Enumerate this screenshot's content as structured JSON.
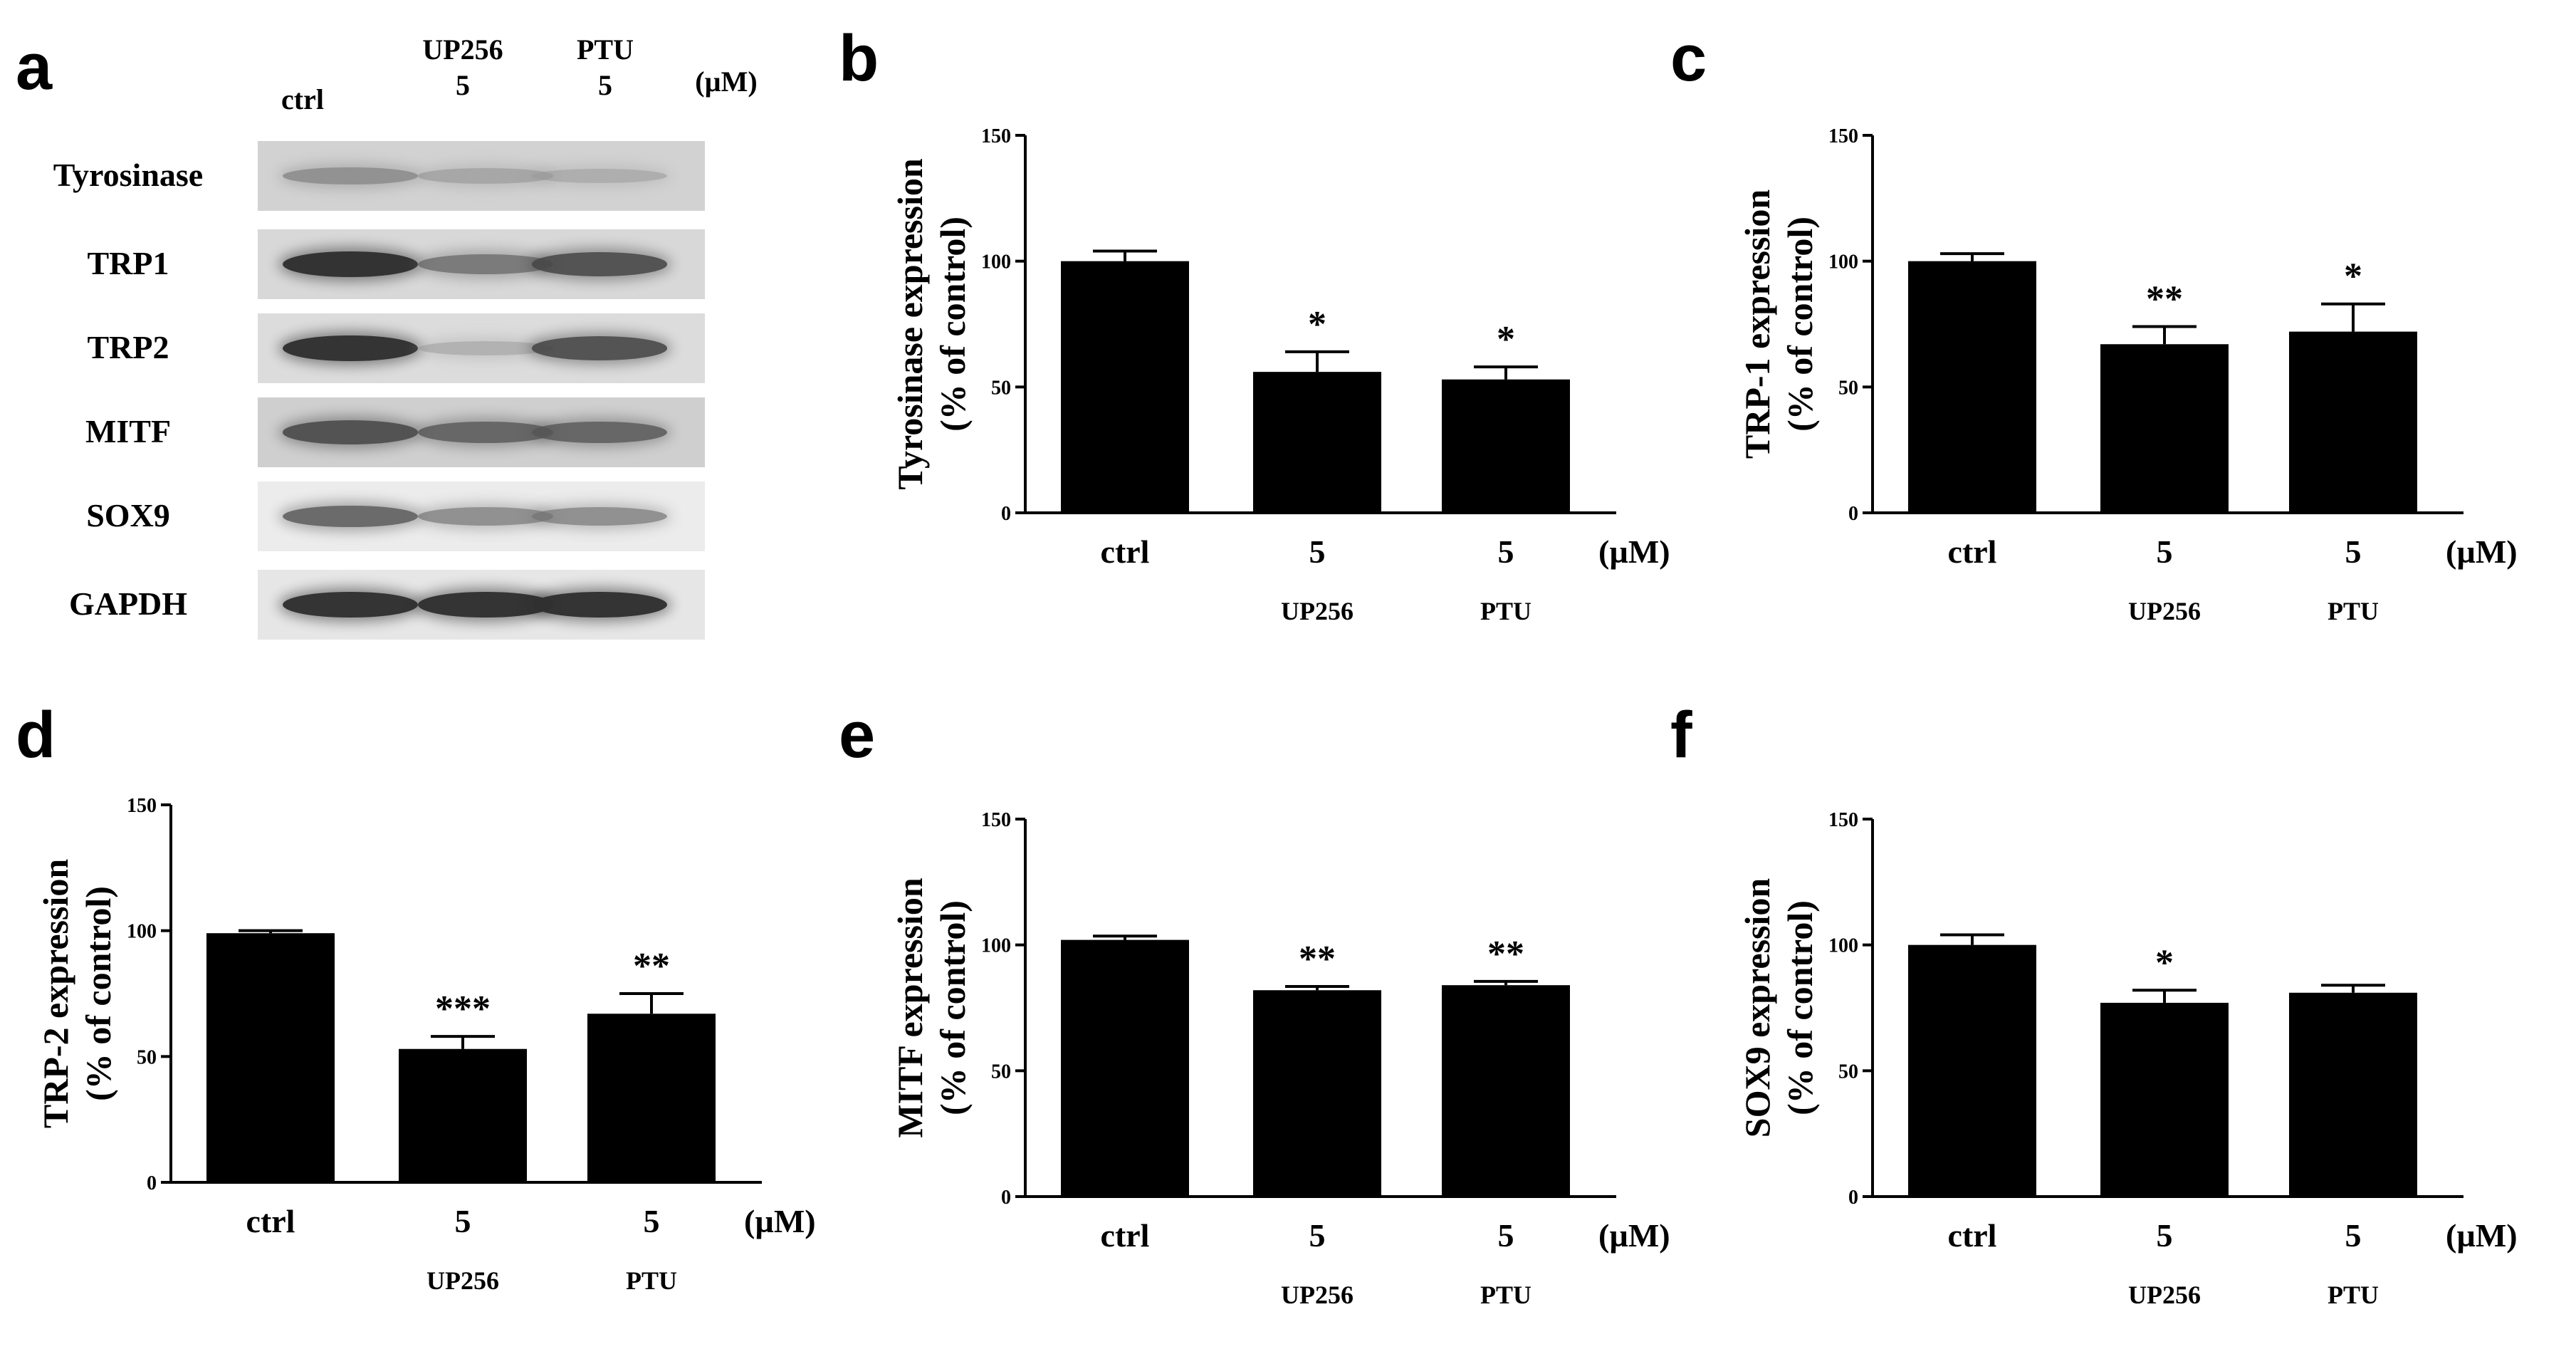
{
  "panels": {
    "a": "a",
    "b": "b",
    "c": "c",
    "d": "d",
    "e": "e",
    "f": "f"
  },
  "blot": {
    "header": {
      "ctrl": "ctrl",
      "up256": "UP256",
      "up256_dose": "5",
      "ptu": "PTU",
      "ptu_dose": "5",
      "unit": "(µM)"
    },
    "rows": [
      {
        "label": "Tyrosinase",
        "bands": [
          0.45,
          0.3,
          0.25
        ],
        "background": "#d2d2d2"
      },
      {
        "label": "TRP1",
        "bands": [
          0.95,
          0.6,
          0.8
        ],
        "background": "#d8d8d8"
      },
      {
        "label": "TRP2",
        "bands": [
          0.95,
          0.25,
          0.8
        ],
        "background": "#dcdcdc"
      },
      {
        "label": "MITF",
        "bands": [
          0.8,
          0.7,
          0.7
        ],
        "background": "#cfcfcf"
      },
      {
        "label": "SOX9",
        "bands": [
          0.7,
          0.5,
          0.5
        ],
        "background": "#ececec"
      },
      {
        "label": "GAPDH",
        "bands": [
          0.95,
          0.95,
          0.95
        ],
        "background": "#e6e6e6"
      }
    ]
  },
  "chart_data": [
    {
      "panel": "b",
      "type": "bar",
      "categories": [
        "ctrl",
        "5",
        "5"
      ],
      "sublabels": [
        "",
        "UP256",
        "PTU"
      ],
      "unit_label": "(µM)",
      "values": [
        100,
        56,
        53
      ],
      "errors": [
        4,
        8,
        5
      ],
      "significance": [
        "",
        "*",
        "*"
      ],
      "ylabel": "Tyrosinase expression",
      "ylabel2": "(% of control)",
      "ylim": [
        0,
        150
      ],
      "yticks": [
        "0",
        "50",
        "100",
        "150"
      ]
    },
    {
      "panel": "c",
      "type": "bar",
      "categories": [
        "ctrl",
        "5",
        "5"
      ],
      "sublabels": [
        "",
        "UP256",
        "PTU"
      ],
      "unit_label": "(µM)",
      "values": [
        100,
        67,
        72
      ],
      "errors": [
        3,
        7,
        11
      ],
      "significance": [
        "",
        "**",
        "*"
      ],
      "ylabel": "TRP-1 expression",
      "ylabel2": "(% of control)",
      "ylim": [
        0,
        150
      ],
      "yticks": [
        "0",
        "50",
        "100",
        "150"
      ]
    },
    {
      "panel": "d",
      "type": "bar",
      "categories": [
        "ctrl",
        "5",
        "5"
      ],
      "sublabels": [
        "",
        "UP256",
        "PTU"
      ],
      "unit_label": "(µM)",
      "values": [
        99,
        53,
        67
      ],
      "errors": [
        1,
        5,
        8
      ],
      "significance": [
        "",
        "***",
        "**"
      ],
      "ylabel": "TRP-2 expression",
      "ylabel2": "(% of control)",
      "ylim": [
        0,
        150
      ],
      "yticks": [
        "0",
        "50",
        "100",
        "150"
      ]
    },
    {
      "panel": "e",
      "type": "bar",
      "categories": [
        "ctrl",
        "5",
        "5"
      ],
      "sublabels": [
        "",
        "UP256",
        "PTU"
      ],
      "unit_label": "(µM)",
      "values": [
        102,
        82,
        84
      ],
      "errors": [
        1.5,
        1.5,
        1.5
      ],
      "significance": [
        "",
        "**",
        "**"
      ],
      "ylabel": "MITF expression",
      "ylabel2": "(% of control)",
      "ylim": [
        0,
        150
      ],
      "yticks": [
        "0",
        "50",
        "100",
        "150"
      ]
    },
    {
      "panel": "f",
      "type": "bar",
      "categories": [
        "ctrl",
        "5",
        "5"
      ],
      "sublabels": [
        "",
        "UP256",
        "PTU"
      ],
      "unit_label": "(µM)",
      "values": [
        100,
        77,
        81
      ],
      "errors": [
        4,
        5,
        3
      ],
      "significance": [
        "",
        "*",
        ""
      ],
      "ylabel": "SOX9 expression",
      "ylabel2": "(% of control)",
      "ylim": [
        0,
        150
      ],
      "yticks": [
        "0",
        "50",
        "100",
        "150"
      ]
    }
  ]
}
